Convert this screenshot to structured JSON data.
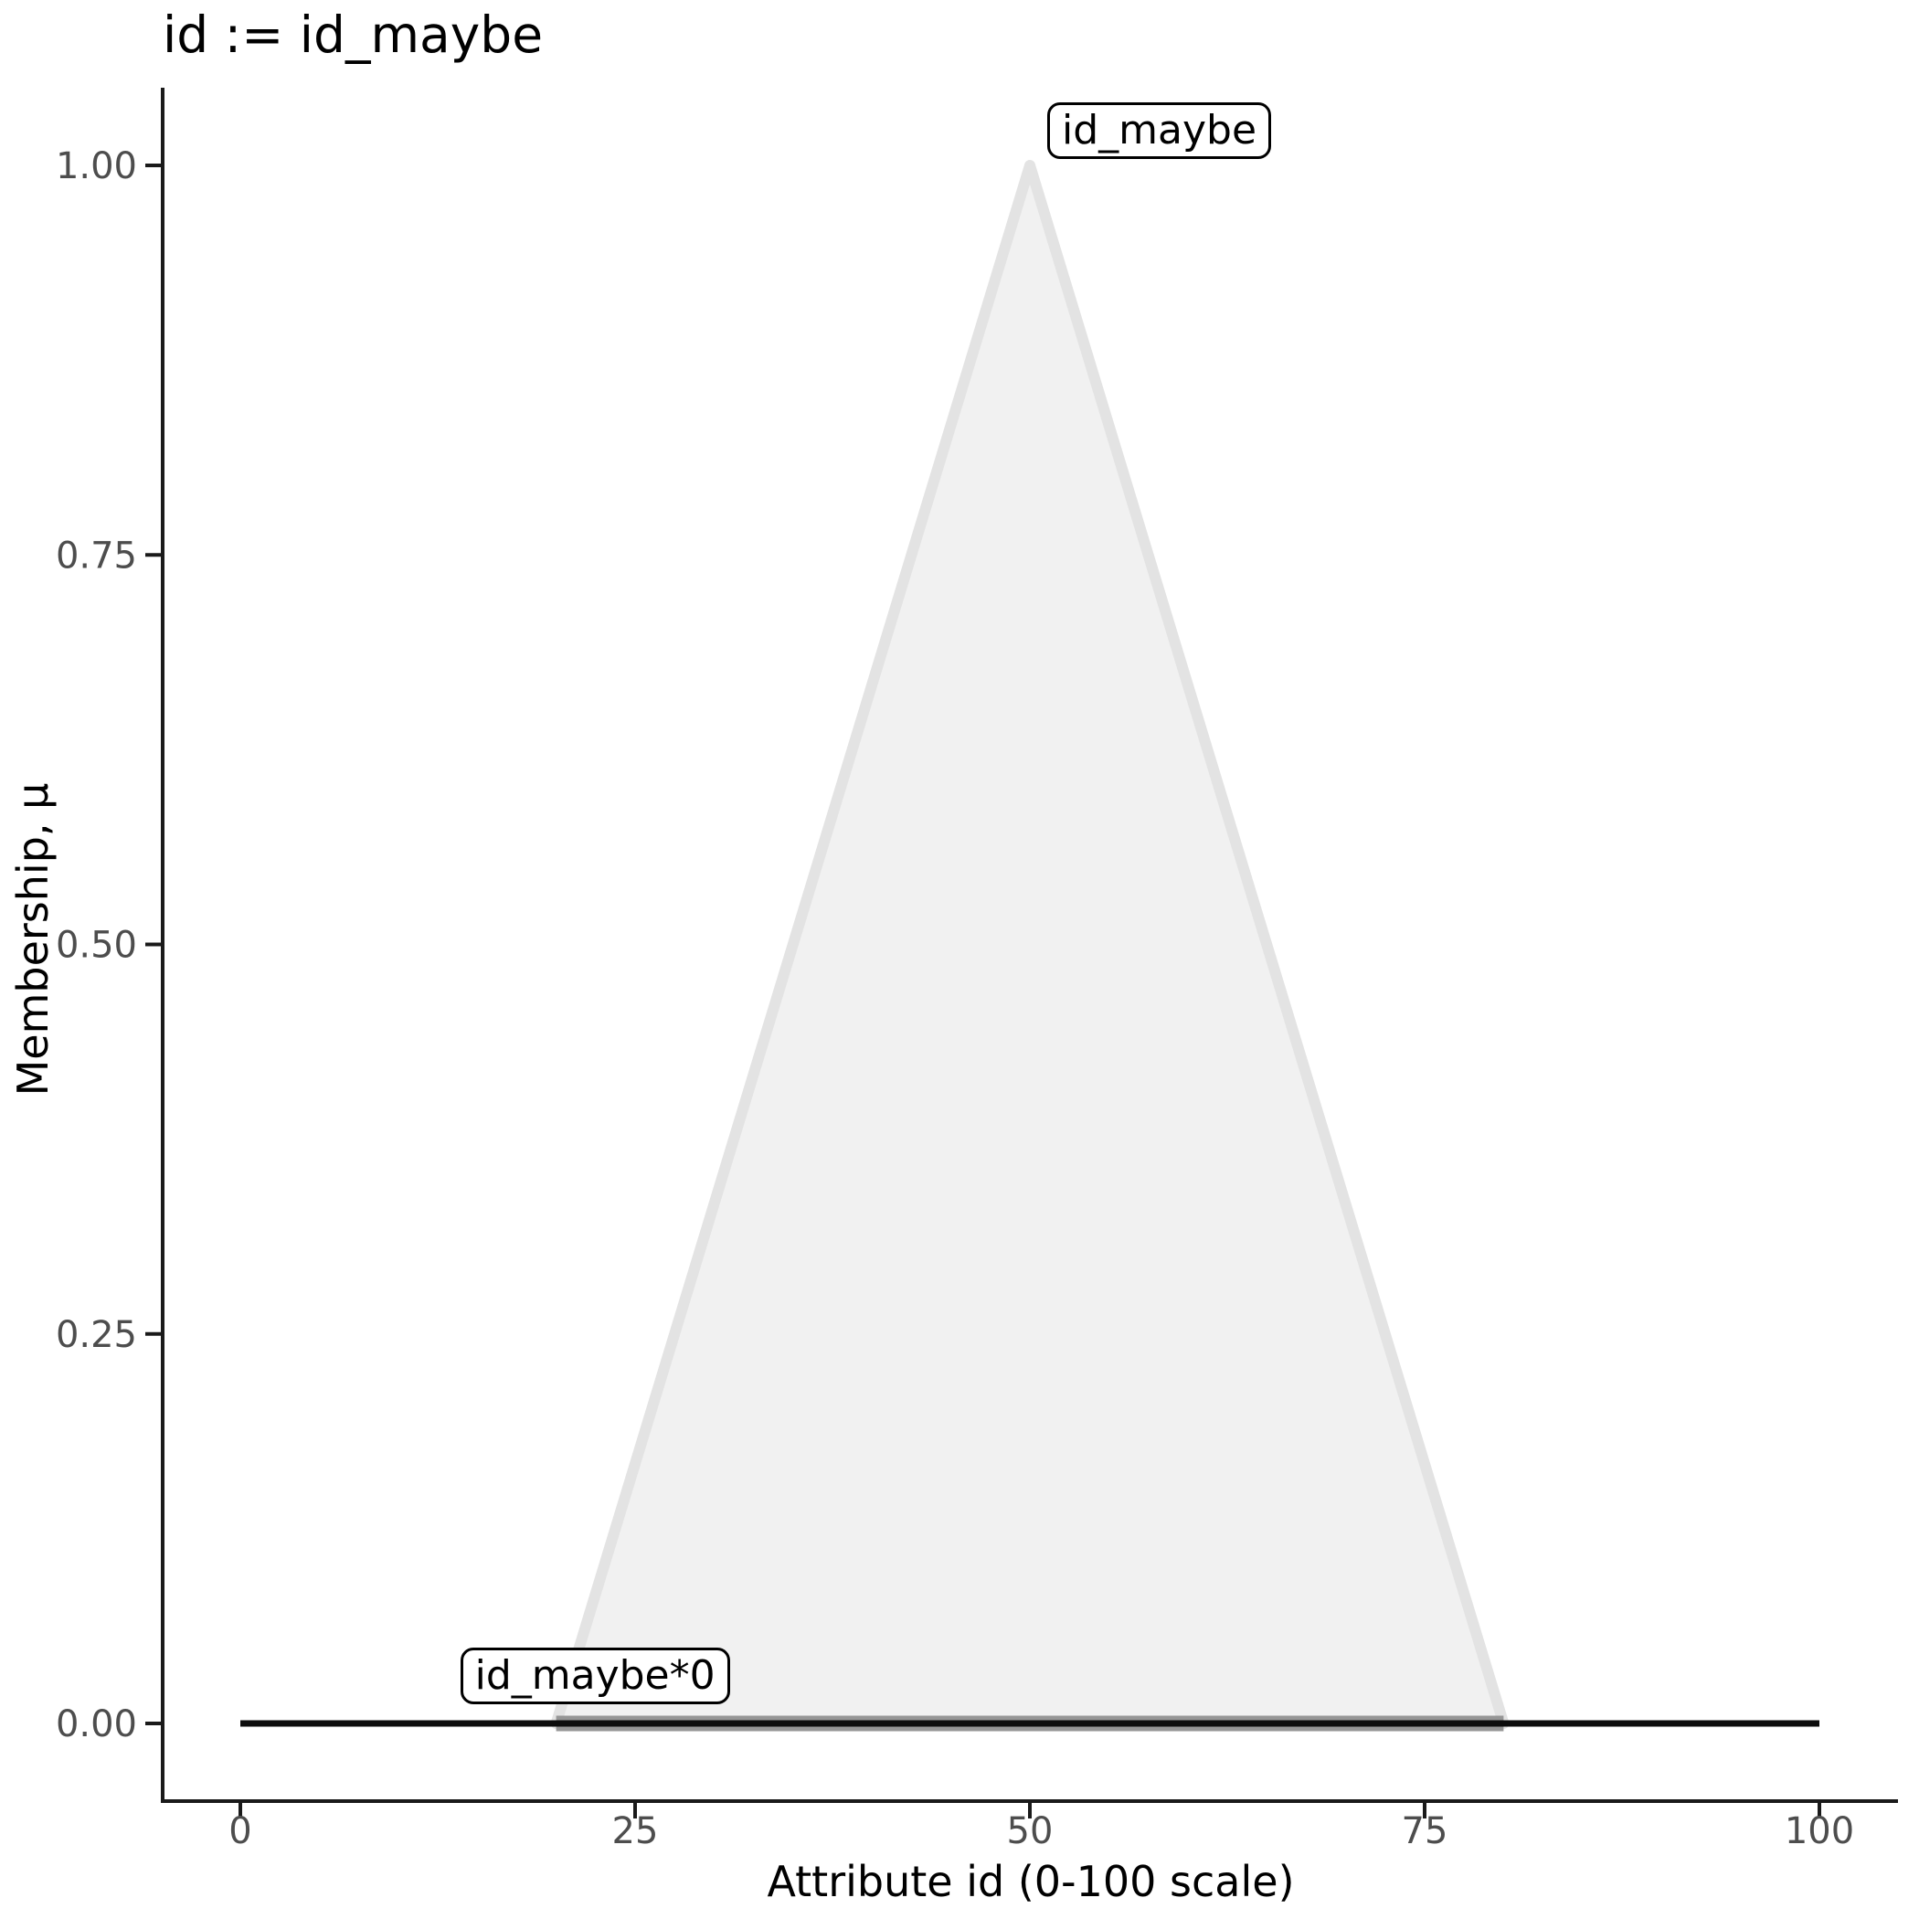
{
  "title": "id := id_maybe",
  "x_axis": {
    "label": "Attribute id (0-100 scale)",
    "tick_labels": [
      "0",
      "25",
      "50",
      "75",
      "100"
    ],
    "tick_values": [
      0,
      25,
      50,
      75,
      100
    ]
  },
  "y_axis": {
    "label": "Membership, μ",
    "tick_labels": [
      "0.00",
      "0.25",
      "0.50",
      "0.75",
      "1.00"
    ],
    "tick_values": [
      0,
      0.25,
      0.5,
      0.75,
      1
    ]
  },
  "chart_data": {
    "type": "area",
    "title": "id := id_maybe",
    "xlabel": "Attribute id (0-100 scale)",
    "ylabel": "Membership, μ",
    "xlim": [
      0,
      100
    ],
    "ylim": [
      0,
      1
    ],
    "x_ticks": [
      0,
      25,
      50,
      75,
      100
    ],
    "y_ticks": [
      0,
      0.25,
      0.5,
      0.75,
      1
    ],
    "grid": false,
    "legend_position": "none",
    "series": [
      {
        "name": "id_maybe",
        "kind": "filled-triangle",
        "description": "triangular membership function, support [20,80], peak at 50 with membership 1",
        "points": [
          [
            20,
            0
          ],
          [
            50,
            1
          ],
          [
            80,
            0
          ]
        ],
        "fill": "#f1f1f1",
        "stroke": "#e3e3e3",
        "stroke_width": 12
      },
      {
        "name": "id_maybe*0",
        "kind": "line",
        "description": "id_maybe scaled by 0: flat zero line over support [20,80]",
        "points": [
          [
            20,
            0
          ],
          [
            80,
            0
          ]
        ],
        "stroke": "#969696",
        "stroke_width": 17
      },
      {
        "name": "id",
        "kind": "line",
        "description": "resulting membership of id, zero over full domain [0,100]",
        "points": [
          [
            0,
            0
          ],
          [
            100,
            0
          ]
        ],
        "stroke": "#0d0d0d",
        "stroke_width": 7
      }
    ],
    "annotations": [
      {
        "text": "id_maybe",
        "anchor": [
          50,
          1
        ]
      },
      {
        "text": "id_maybe*0",
        "anchor": [
          20,
          0
        ]
      }
    ]
  },
  "colors": {
    "background": "#ffffff",
    "axis_line": "#1a1a1a",
    "tick_mark": "#1a1a1a",
    "tick_label": "#4d4d4d",
    "title_text": "#000000",
    "triangle_fill": "#f1f1f1",
    "triangle_stroke": "#e3e3e3",
    "zero_segment_gray": "#969696",
    "zero_line_black": "#0d0d0d",
    "label_box_border": "#000000",
    "label_box_background": "#ffffff"
  }
}
